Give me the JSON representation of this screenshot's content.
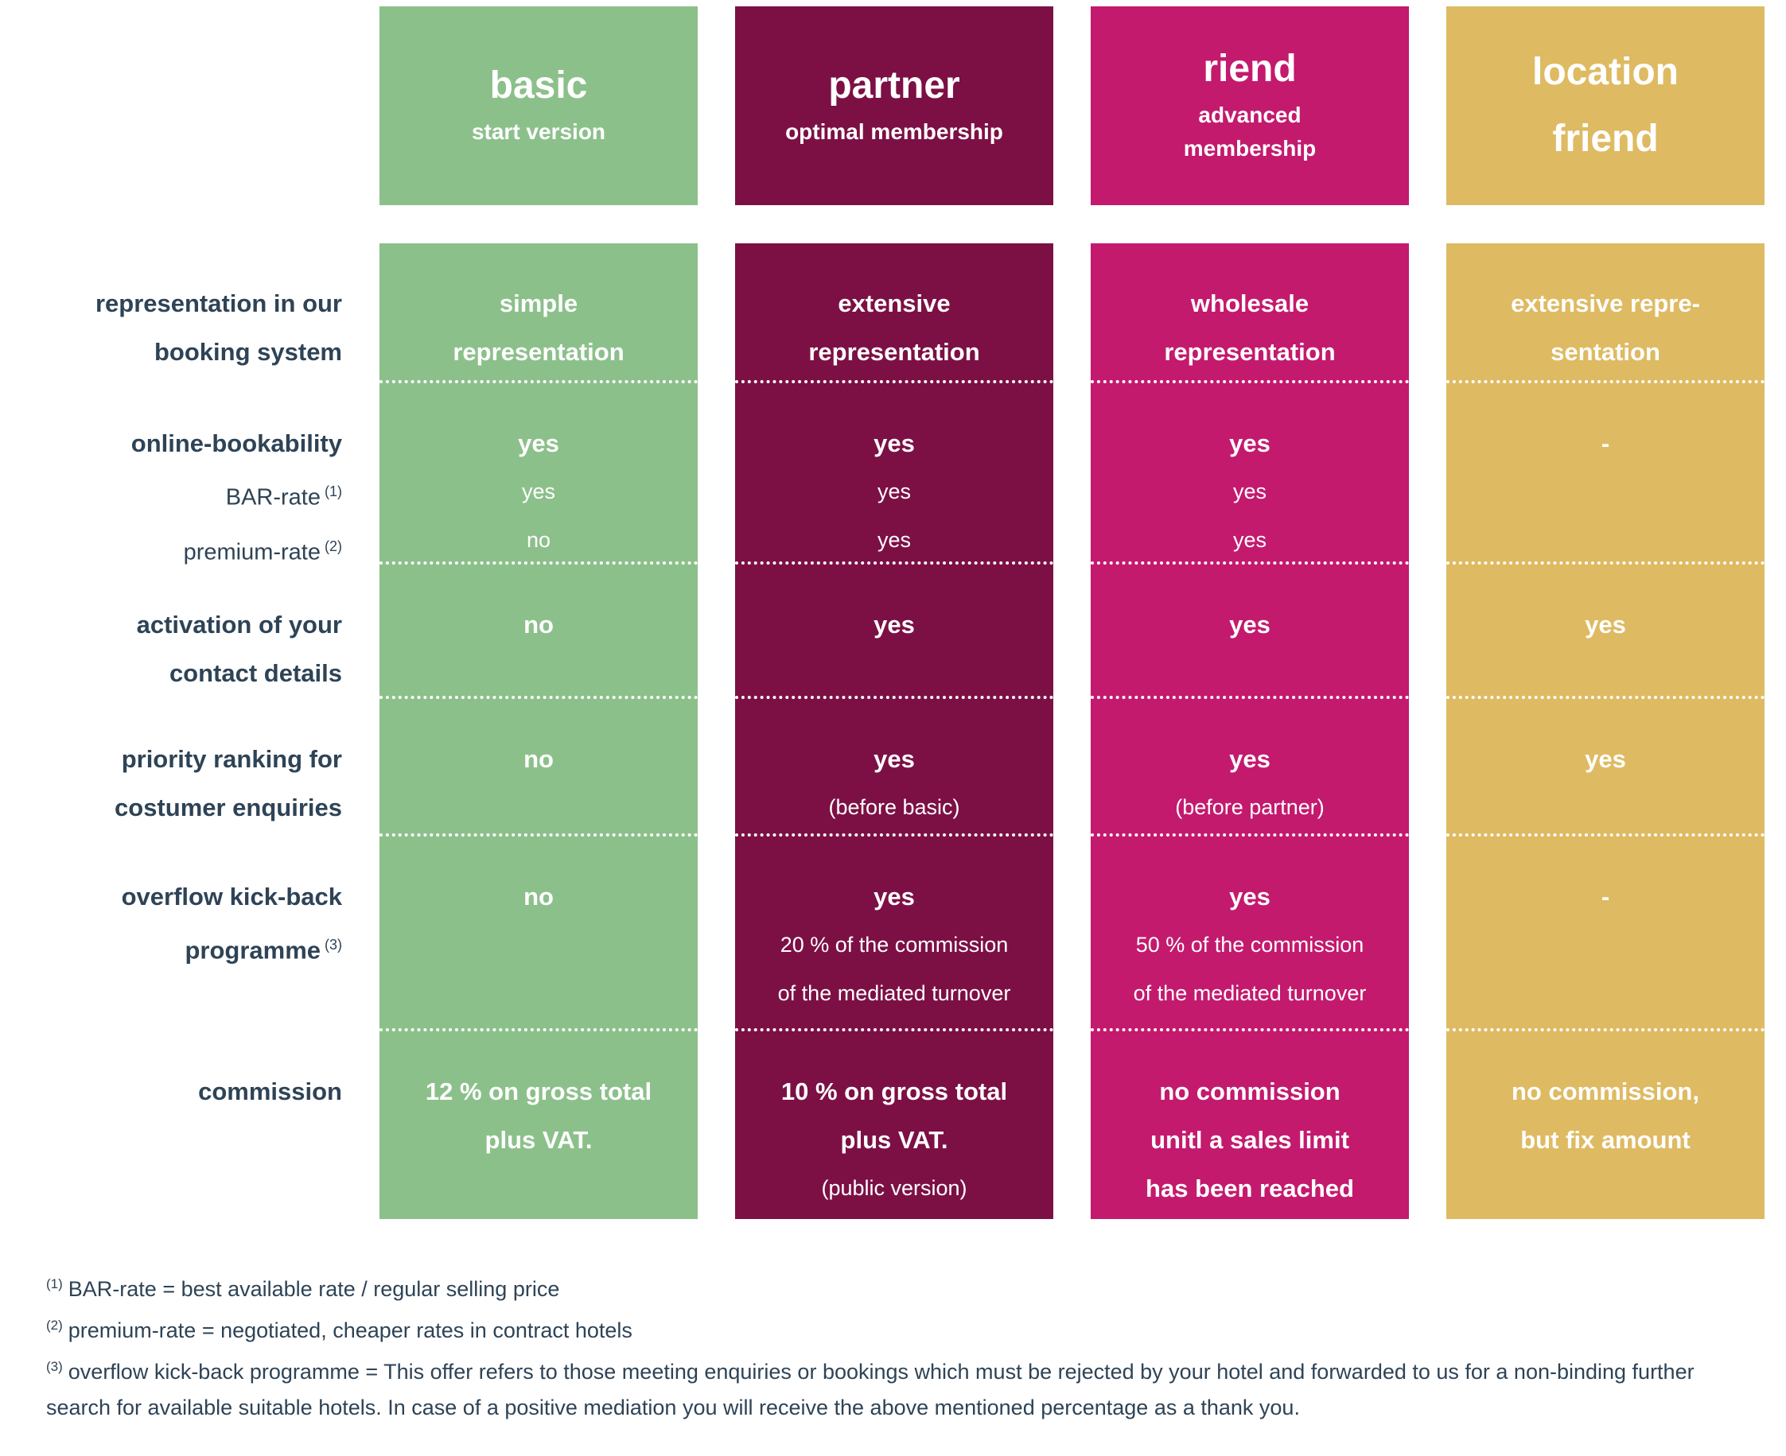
{
  "colors": {
    "basic_green": "#8cc08b",
    "partner_burgundy": "#7c1045",
    "riend_magenta": "#c31a6e",
    "location_gold": "#deba62",
    "label_text": "#2e4356",
    "cell_text": "#ffffff"
  },
  "columns": [
    {
      "id": "basic",
      "title_lines": [
        "basic"
      ],
      "subtitle_lines": [
        "start version"
      ],
      "color": "#8cc08b"
    },
    {
      "id": "partner",
      "title_lines": [
        "partner"
      ],
      "subtitle_lines": [
        "optimal membership"
      ],
      "color": "#7c1045"
    },
    {
      "id": "riend",
      "title_lines": [
        "riend"
      ],
      "subtitle_lines": [
        "advanced",
        "membership"
      ],
      "color": "#c31a6e"
    },
    {
      "id": "location-friend",
      "title_lines": [
        "location",
        "friend"
      ],
      "subtitle_lines": [],
      "color": "#deba62"
    }
  ],
  "rows": [
    {
      "id": "representation",
      "label_lines": [
        {
          "text": "representation in our",
          "bold": true
        },
        {
          "text": "booking system",
          "bold": true
        }
      ],
      "cells": [
        {
          "lines": [
            {
              "text": "simple",
              "bold": true
            },
            {
              "text": "representation",
              "bold": true
            }
          ]
        },
        {
          "lines": [
            {
              "text": "extensive",
              "bold": true
            },
            {
              "text": "representation",
              "bold": true
            }
          ]
        },
        {
          "lines": [
            {
              "text": "wholesale",
              "bold": true
            },
            {
              "text": "representation",
              "bold": true
            }
          ]
        },
        {
          "lines": [
            {
              "text": "extensive repre-",
              "bold": true
            },
            {
              "text": "sentation",
              "bold": true
            }
          ]
        }
      ]
    },
    {
      "id": "online-bookability",
      "label_lines": [
        {
          "text": "online-bookability",
          "bold": true
        },
        {
          "text": "BAR-rate",
          "sup": "(1)",
          "bold": false
        },
        {
          "text": "premium-rate",
          "sup": "(2)",
          "bold": false
        }
      ],
      "cells": [
        {
          "lines": [
            {
              "text": "yes",
              "bold": true
            },
            {
              "text": "yes",
              "bold": false
            },
            {
              "text": "no",
              "bold": false
            }
          ]
        },
        {
          "lines": [
            {
              "text": "yes",
              "bold": true
            },
            {
              "text": "yes",
              "bold": false
            },
            {
              "text": "yes",
              "bold": false
            }
          ]
        },
        {
          "lines": [
            {
              "text": "yes",
              "bold": true
            },
            {
              "text": "yes",
              "bold": false
            },
            {
              "text": "yes",
              "bold": false
            }
          ]
        },
        {
          "lines": [
            {
              "text": "-",
              "bold": true
            }
          ]
        }
      ]
    },
    {
      "id": "activation",
      "label_lines": [
        {
          "text": "activation of your",
          "bold": true
        },
        {
          "text": "contact details",
          "bold": true
        }
      ],
      "cells": [
        {
          "lines": [
            {
              "text": "no",
              "bold": true
            }
          ]
        },
        {
          "lines": [
            {
              "text": "yes",
              "bold": true
            }
          ]
        },
        {
          "lines": [
            {
              "text": "yes",
              "bold": true
            }
          ]
        },
        {
          "lines": [
            {
              "text": "yes",
              "bold": true
            }
          ]
        }
      ]
    },
    {
      "id": "priority-ranking",
      "label_lines": [
        {
          "text": "priority ranking for",
          "bold": true
        },
        {
          "text": "costumer enquiries",
          "bold": true
        }
      ],
      "cells": [
        {
          "lines": [
            {
              "text": "no",
              "bold": true
            }
          ]
        },
        {
          "lines": [
            {
              "text": "yes",
              "bold": true
            },
            {
              "text": "(before basic)",
              "bold": false
            }
          ]
        },
        {
          "lines": [
            {
              "text": "yes",
              "bold": true
            },
            {
              "text": "(before partner)",
              "bold": false
            }
          ]
        },
        {
          "lines": [
            {
              "text": "yes",
              "bold": true
            }
          ]
        }
      ]
    },
    {
      "id": "overflow-kickback",
      "label_lines": [
        {
          "text": "overflow kick-back",
          "bold": true
        },
        {
          "text": "programme",
          "sup": "(3)",
          "bold": true
        }
      ],
      "cells": [
        {
          "lines": [
            {
              "text": "no",
              "bold": true
            }
          ]
        },
        {
          "lines": [
            {
              "text": "yes",
              "bold": true
            },
            {
              "text": "20 % of the commission",
              "bold": false
            },
            {
              "text": "of the mediated turnover",
              "bold": false
            }
          ]
        },
        {
          "lines": [
            {
              "text": "yes",
              "bold": true
            },
            {
              "text": "50 % of the commission",
              "bold": false
            },
            {
              "text": "of the mediated turnover",
              "bold": false
            }
          ]
        },
        {
          "lines": [
            {
              "text": "-",
              "bold": true
            }
          ]
        }
      ]
    },
    {
      "id": "commission",
      "label_lines": [
        {
          "text": "commission",
          "bold": true
        }
      ],
      "cells": [
        {
          "lines": [
            {
              "text": "12 % on gross total",
              "bold": true
            },
            {
              "text": "plus VAT.",
              "bold": true
            }
          ]
        },
        {
          "lines": [
            {
              "text": "10 % on gross total",
              "bold": true
            },
            {
              "text": "plus VAT.",
              "bold": true
            },
            {
              "text": "(public version)",
              "bold": false
            }
          ]
        },
        {
          "lines": [
            {
              "text": "no commission",
              "bold": true
            },
            {
              "text": "unitl a sales limit",
              "bold": true
            },
            {
              "text": "has been reached",
              "bold": true
            }
          ]
        },
        {
          "lines": [
            {
              "text": "no commission,",
              "bold": true
            },
            {
              "text": "but fix amount",
              "bold": true
            }
          ]
        }
      ]
    }
  ],
  "footnotes": [
    {
      "sup": "(1)",
      "text": "BAR-rate = best available rate / regular selling price"
    },
    {
      "sup": "(2)",
      "text": "premium-rate = negotiated, cheaper rates in contract hotels"
    },
    {
      "sup": "(3)",
      "text": "overflow kick-back programme = This offer refers to those meeting enquiries or bookings which must be rejected by your hotel and forwarded to us for a non-binding further search for available suitable hotels. In case of a positive mediation you will receive the above mentioned percentage as a thank you."
    }
  ]
}
